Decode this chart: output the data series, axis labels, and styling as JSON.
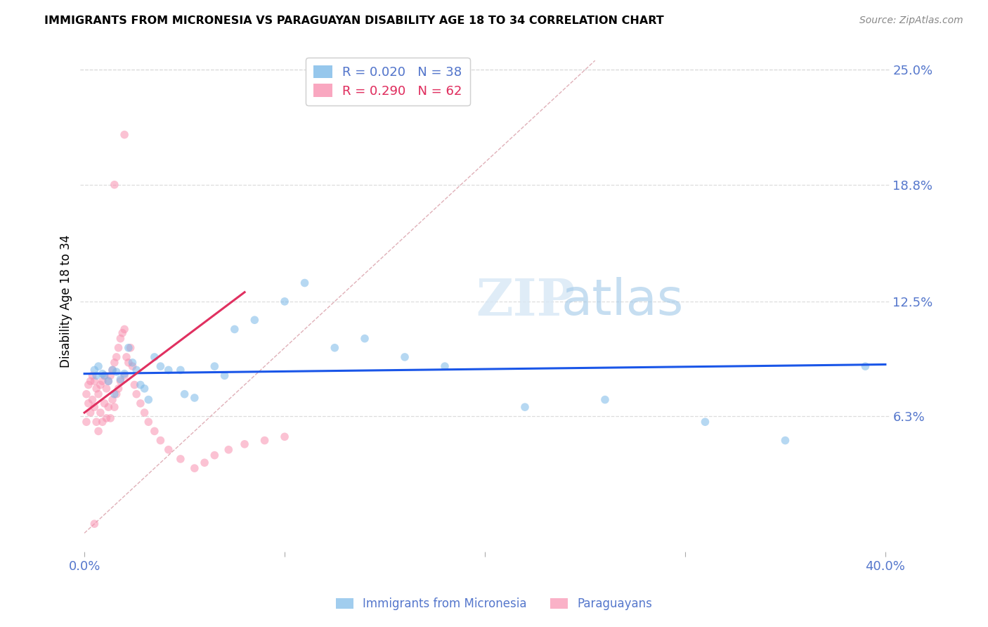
{
  "title": "IMMIGRANTS FROM MICRONESIA VS PARAGUAYAN DISABILITY AGE 18 TO 34 CORRELATION CHART",
  "source": "Source: ZipAtlas.com",
  "ylabel": "Disability Age 18 to 34",
  "xlim": [
    -0.002,
    0.402
  ],
  "ylim": [
    -0.01,
    0.26
  ],
  "xtick_positions": [
    0.0,
    0.1,
    0.2,
    0.3,
    0.4
  ],
  "xticklabels": [
    "0.0%",
    "",
    "",
    "",
    "40.0%"
  ],
  "ytick_right_labels": [
    "25.0%",
    "18.8%",
    "12.5%",
    "6.3%"
  ],
  "ytick_right_values": [
    0.25,
    0.188,
    0.125,
    0.063
  ],
  "blue_scatter_x": [
    0.005,
    0.007,
    0.009,
    0.01,
    0.012,
    0.014,
    0.016,
    0.018,
    0.02,
    0.022,
    0.024,
    0.026,
    0.028,
    0.03,
    0.032,
    0.035,
    0.038,
    0.042,
    0.048,
    0.055,
    0.065,
    0.075,
    0.085,
    0.1,
    0.11,
    0.125,
    0.14,
    0.16,
    0.18,
    0.22,
    0.26,
    0.31,
    0.35,
    0.39,
    0.006,
    0.015,
    0.05,
    0.07
  ],
  "blue_scatter_y": [
    0.088,
    0.09,
    0.086,
    0.085,
    0.082,
    0.088,
    0.087,
    0.083,
    0.086,
    0.1,
    0.092,
    0.088,
    0.08,
    0.078,
    0.072,
    0.095,
    0.09,
    0.088,
    0.088,
    0.073,
    0.09,
    0.11,
    0.115,
    0.125,
    0.135,
    0.1,
    0.105,
    0.095,
    0.09,
    0.068,
    0.072,
    0.06,
    0.05,
    0.09,
    0.085,
    0.075,
    0.075,
    0.085
  ],
  "pink_scatter_x": [
    0.001,
    0.001,
    0.002,
    0.002,
    0.003,
    0.003,
    0.004,
    0.004,
    0.005,
    0.005,
    0.006,
    0.006,
    0.007,
    0.007,
    0.008,
    0.008,
    0.009,
    0.009,
    0.01,
    0.01,
    0.011,
    0.011,
    0.012,
    0.012,
    0.013,
    0.013,
    0.014,
    0.014,
    0.015,
    0.015,
    0.016,
    0.016,
    0.017,
    0.017,
    0.018,
    0.018,
    0.019,
    0.02,
    0.02,
    0.021,
    0.022,
    0.023,
    0.024,
    0.025,
    0.026,
    0.028,
    0.03,
    0.032,
    0.035,
    0.038,
    0.042,
    0.048,
    0.055,
    0.06,
    0.065,
    0.072,
    0.08,
    0.09,
    0.1,
    0.015,
    0.02,
    0.005
  ],
  "pink_scatter_y": [
    0.075,
    0.06,
    0.08,
    0.07,
    0.082,
    0.065,
    0.085,
    0.072,
    0.082,
    0.068,
    0.078,
    0.06,
    0.075,
    0.055,
    0.08,
    0.065,
    0.082,
    0.06,
    0.085,
    0.07,
    0.078,
    0.062,
    0.082,
    0.068,
    0.085,
    0.062,
    0.088,
    0.072,
    0.092,
    0.068,
    0.095,
    0.075,
    0.1,
    0.078,
    0.105,
    0.082,
    0.108,
    0.11,
    0.085,
    0.095,
    0.092,
    0.1,
    0.09,
    0.08,
    0.075,
    0.07,
    0.065,
    0.06,
    0.055,
    0.05,
    0.045,
    0.04,
    0.035,
    0.038,
    0.042,
    0.045,
    0.048,
    0.05,
    0.052,
    0.188,
    0.215,
    0.005
  ],
  "blue_line_x": [
    0.0,
    0.4
  ],
  "blue_line_y": [
    0.086,
    0.091
  ],
  "pink_line_x": [
    0.0,
    0.08
  ],
  "pink_line_y": [
    0.065,
    0.13
  ],
  "diagonal_line_x": [
    0.0,
    0.255
  ],
  "diagonal_line_y": [
    0.0,
    0.255
  ],
  "scatter_alpha": 0.55,
  "scatter_size": 70,
  "blue_color": "#7ab8e8",
  "pink_color": "#f890b0",
  "blue_line_color": "#1a56e8",
  "pink_line_color": "#e03060",
  "diagonal_color": "#e0b0b8",
  "grid_color": "#dddddd",
  "axis_label_color": "#5577cc",
  "background_color": "#ffffff"
}
